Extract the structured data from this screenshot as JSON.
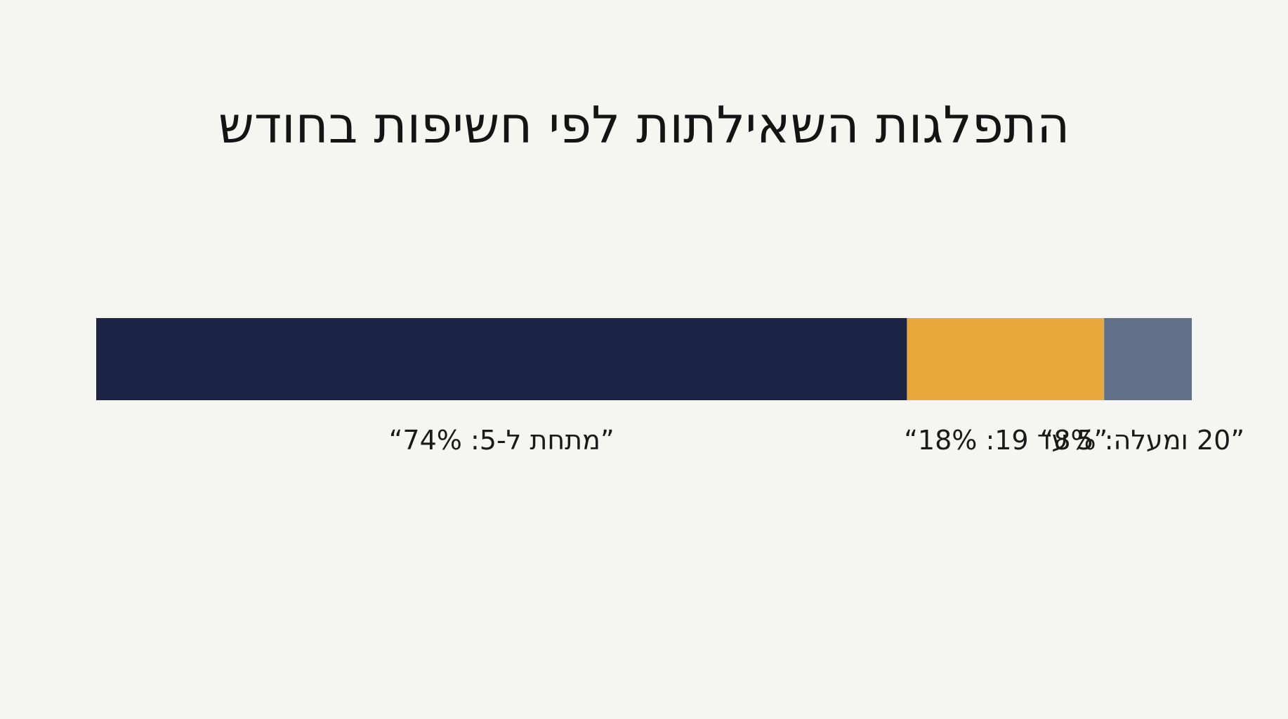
{
  "chart_data": {
    "type": "bar",
    "orientation": "horizontal-stacked",
    "direction": "rtl",
    "title": "התפלגות השאילתות לפי חשיפות בחודש",
    "xlabel": "",
    "ylabel": "",
    "categories": [
      "מתחת ל-5",
      "5 עד 19",
      "20 ומעלה"
    ],
    "values": [
      74,
      18,
      8
    ],
    "unit": "%",
    "labels": [
      "”מתחת ל-5: 74%“",
      "”5 עד 19: 18%“",
      "”20 ומעלה: 8%“"
    ],
    "colors": [
      "#1b2445",
      "#e8a83c",
      "#607089"
    ],
    "xlim": [
      0,
      100
    ],
    "grid": false,
    "legend": "none"
  }
}
